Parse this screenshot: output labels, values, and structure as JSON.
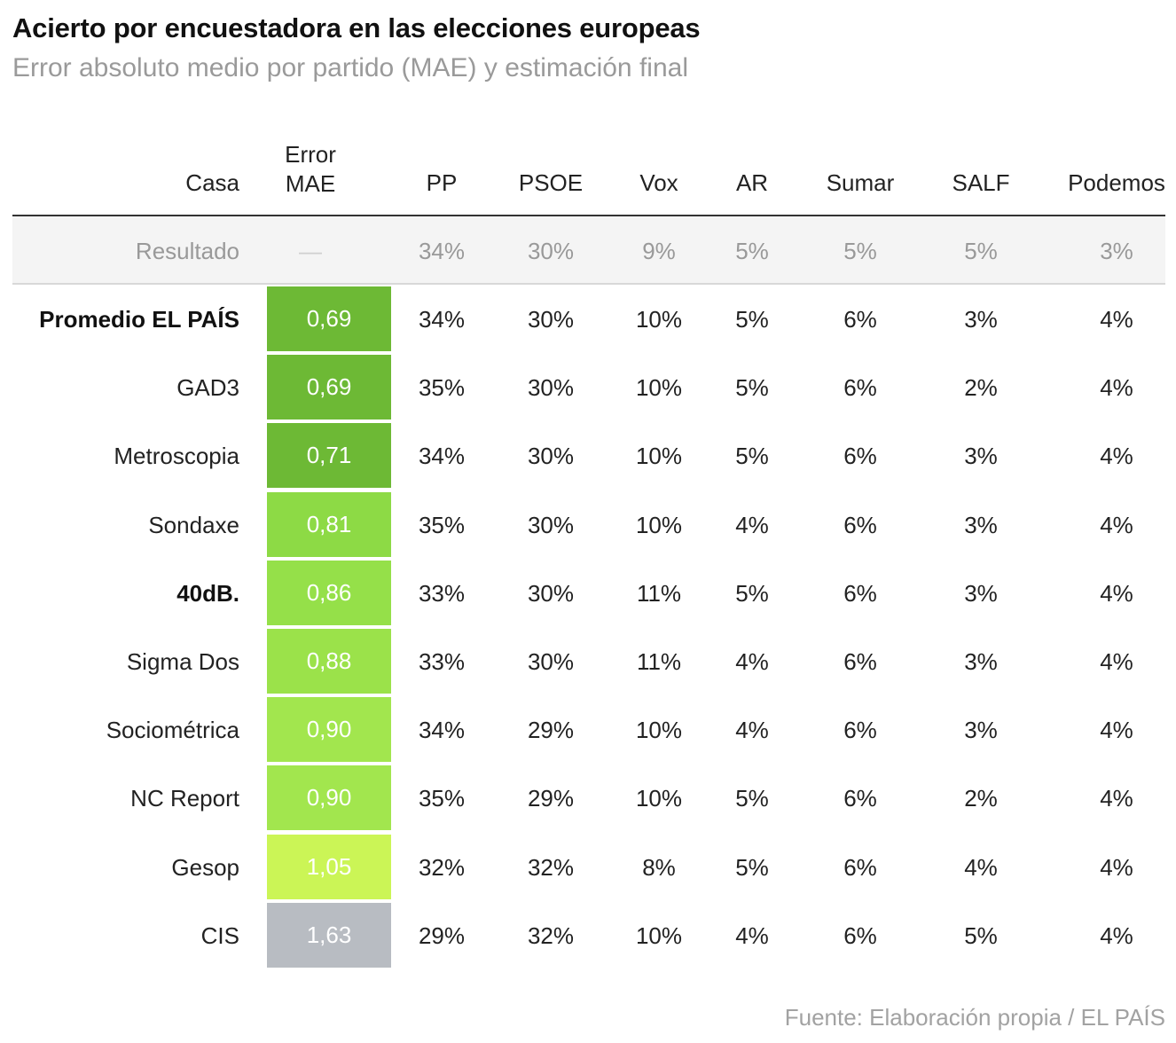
{
  "title": "Acierto por encuestadora en las elecciones europeas",
  "subtitle": "Error absoluto medio por partido (MAE) y estimación final",
  "source": "Fuente: Elaboración propia / EL PAÍS",
  "chart_data": {
    "type": "table",
    "columns": {
      "house": "Casa",
      "mae": [
        "Error",
        "MAE"
      ],
      "parties": [
        "PP",
        "PSOE",
        "Vox",
        "AR",
        "Sumar",
        "SALF",
        "Podemos"
      ]
    },
    "result": {
      "label": "Resultado",
      "mae": "—",
      "values": [
        "34%",
        "30%",
        "9%",
        "5%",
        "5%",
        "5%",
        "3%"
      ]
    },
    "rows": [
      {
        "house": "Promedio EL PAÍS",
        "bold": true,
        "mae": "0,69",
        "color": "#6db935",
        "values": [
          "34%",
          "30%",
          "10%",
          "5%",
          "6%",
          "3%",
          "4%"
        ]
      },
      {
        "house": "GAD3",
        "bold": false,
        "mae": "0,69",
        "color": "#6db935",
        "values": [
          "35%",
          "30%",
          "10%",
          "5%",
          "6%",
          "2%",
          "4%"
        ]
      },
      {
        "house": "Metroscopia",
        "bold": false,
        "mae": "0,71",
        "color": "#6db935",
        "values": [
          "34%",
          "30%",
          "10%",
          "5%",
          "6%",
          "3%",
          "4%"
        ]
      },
      {
        "house": "Sondaxe",
        "bold": false,
        "mae": "0,81",
        "color": "#8dda45",
        "values": [
          "35%",
          "30%",
          "10%",
          "4%",
          "6%",
          "3%",
          "4%"
        ]
      },
      {
        "house": "40dB.",
        "bold": true,
        "mae": "0,86",
        "color": "#95e049",
        "values": [
          "33%",
          "30%",
          "11%",
          "5%",
          "6%",
          "3%",
          "4%"
        ]
      },
      {
        "house": "Sigma Dos",
        "bold": false,
        "mae": "0,88",
        "color": "#9be24a",
        "values": [
          "33%",
          "30%",
          "11%",
          "4%",
          "6%",
          "3%",
          "4%"
        ]
      },
      {
        "house": "Sociométrica",
        "bold": false,
        "mae": "0,90",
        "color": "#a2e64e",
        "values": [
          "34%",
          "29%",
          "10%",
          "4%",
          "6%",
          "3%",
          "4%"
        ]
      },
      {
        "house": "NC Report",
        "bold": false,
        "mae": "0,90",
        "color": "#a2e64e",
        "values": [
          "35%",
          "29%",
          "10%",
          "5%",
          "6%",
          "2%",
          "4%"
        ]
      },
      {
        "house": "Gesop",
        "bold": false,
        "mae": "1,05",
        "color": "#cbf556",
        "values": [
          "32%",
          "32%",
          "8%",
          "5%",
          "6%",
          "4%",
          "4%"
        ]
      },
      {
        "house": "CIS",
        "bold": false,
        "mae": "1,63",
        "color": "#b8bcc2",
        "values": [
          "29%",
          "32%",
          "10%",
          "4%",
          "6%",
          "5%",
          "4%"
        ]
      }
    ]
  }
}
